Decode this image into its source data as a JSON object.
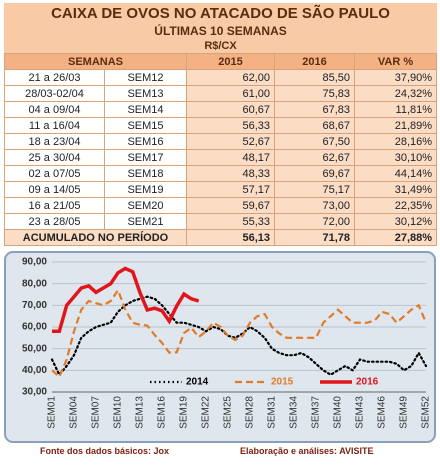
{
  "table": {
    "title": "CAIXA DE OVOS NO ATACADO DE SÃO PAULO",
    "subtitle": "ÚLTIMAS 10 SEMANAS",
    "unit": "R$/CX",
    "header": [
      "SEMANAS",
      "2015",
      "2016",
      "VAR %"
    ],
    "rows": [
      [
        "21 a 26/03",
        "SEM12",
        "62,00",
        "85,50",
        "37,90%"
      ],
      [
        "28/03-02/04",
        "SEM13",
        "61,00",
        "75,83",
        "24,32%"
      ],
      [
        "04 a 09/04",
        "SEM14",
        "60,67",
        "67,83",
        "11,81%"
      ],
      [
        "11 a 16/04",
        "SEM15",
        "56,33",
        "68,67",
        "21,89%"
      ],
      [
        "18 a 23/04",
        "SEM16",
        "52,67",
        "67,50",
        "28,16%"
      ],
      [
        "25 a 30/04",
        "SEM17",
        "48,17",
        "62,67",
        "30,10%"
      ],
      [
        "02 a 07/05",
        "SEM18",
        "48,33",
        "69,67",
        "44,14%"
      ],
      [
        "09 a 14/05",
        "SEM19",
        "57,17",
        "75,17",
        "31,49%"
      ],
      [
        "16 a 21/05",
        "SEM20",
        "59,67",
        "73,00",
        "22,35%"
      ],
      [
        "23 a 28/05",
        "SEM21",
        "55,33",
        "72,00",
        "30,12%"
      ]
    ],
    "total": [
      "ACUMULADO NO PERÍODO",
      "56,13",
      "71,78",
      "27,88%"
    ]
  },
  "chart_data": {
    "type": "line",
    "categories": [
      "SEM01",
      null,
      null,
      "SEM04",
      null,
      null,
      "SEM07",
      null,
      null,
      "SEM10",
      null,
      null,
      "SEM13",
      null,
      null,
      "SEM16",
      null,
      null,
      "SEM19",
      null,
      null,
      "SEM22",
      null,
      null,
      "SEM25",
      null,
      null,
      "SEM28",
      null,
      null,
      "SEM31",
      null,
      null,
      "SEM34",
      null,
      null,
      "SEM37",
      null,
      null,
      "SEM40",
      null,
      null,
      "SEM43",
      null,
      null,
      "SEM46",
      null,
      null,
      "SEM49",
      null,
      null,
      "SEM52"
    ],
    "ylim": [
      30,
      90
    ],
    "yticks": [
      {
        "value": 30,
        "label": "30,00"
      },
      {
        "value": 40,
        "label": "40,00"
      },
      {
        "value": 50,
        "label": "50,00"
      },
      {
        "value": 60,
        "label": "60,00"
      },
      {
        "value": 70,
        "label": "70,00"
      },
      {
        "value": 80,
        "label": "80,00"
      },
      {
        "value": 90,
        "label": "90,00"
      }
    ],
    "grid": true,
    "legend": "lower center",
    "series": [
      {
        "name": "2014",
        "color": "#000000",
        "line_style": "dotted",
        "values": [
          45,
          38,
          42,
          47,
          55,
          58,
          60,
          61,
          62,
          67,
          70,
          72,
          73,
          74,
          73,
          70,
          66,
          62,
          62,
          61,
          60,
          58,
          60,
          59,
          56,
          55,
          57,
          60,
          58,
          55,
          50,
          48,
          47,
          47,
          48,
          46,
          43,
          40,
          38,
          40,
          42,
          40,
          45,
          44,
          44,
          44,
          44,
          43,
          40,
          42,
          48,
          42
        ]
      },
      {
        "name": "2015",
        "color": "#e07b28",
        "line_style": "dashed",
        "values": [
          40,
          37,
          45,
          58,
          68,
          72,
          71,
          70,
          72,
          77,
          68,
          62,
          61,
          60.67,
          56.33,
          52.67,
          48.17,
          48.33,
          57.17,
          59.67,
          55.33,
          58,
          62,
          60,
          56,
          54,
          56,
          62,
          65,
          66,
          60,
          57,
          55,
          55,
          55,
          55,
          55,
          62,
          65,
          68,
          65,
          62,
          62,
          62,
          63,
          67,
          66,
          62,
          65,
          68,
          70,
          62
        ]
      },
      {
        "name": "2016",
        "color": "#e0161b",
        "line_style": "solid",
        "values": [
          58,
          58,
          70,
          74,
          78,
          79,
          76,
          78,
          80,
          85,
          87,
          85.5,
          75.83,
          67.83,
          68.67,
          67.5,
          62.67,
          69.67,
          75.17,
          73,
          72,
          null,
          null,
          null,
          null,
          null,
          null,
          null,
          null,
          null,
          null,
          null,
          null,
          null,
          null,
          null,
          null,
          null,
          null,
          null,
          null,
          null,
          null,
          null,
          null,
          null,
          null,
          null,
          null,
          null,
          null,
          null
        ]
      }
    ]
  },
  "footer": {
    "source": "Fonte dos dados básicos: Jox",
    "credit": "Elaboração e análises: AVISITE"
  }
}
